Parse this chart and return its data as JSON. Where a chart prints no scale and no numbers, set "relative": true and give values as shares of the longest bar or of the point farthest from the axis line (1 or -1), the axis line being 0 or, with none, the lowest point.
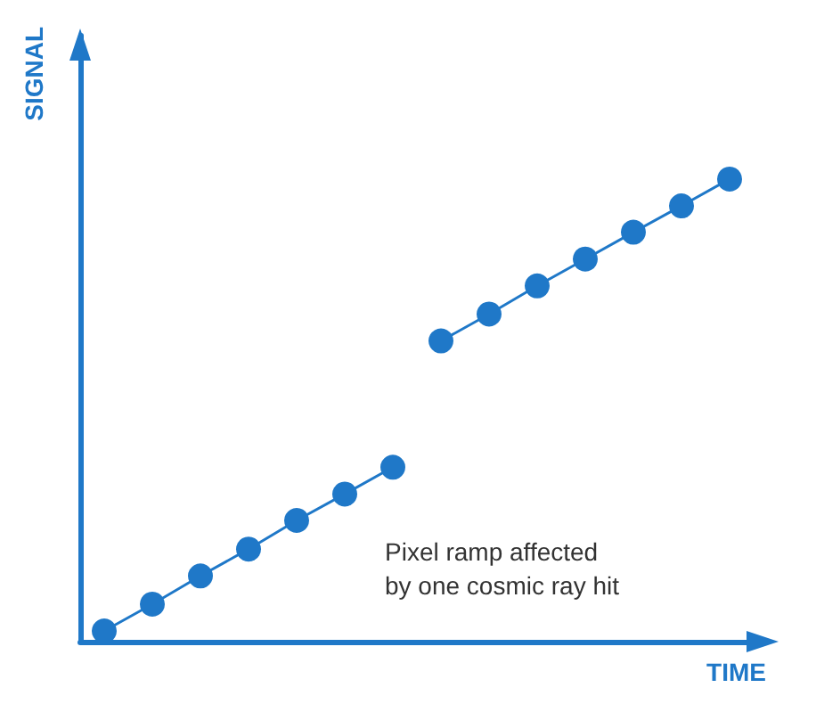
{
  "chart_data": {
    "type": "line",
    "xlabel": "TIME",
    "ylabel": "SIGNAL",
    "relative": true,
    "marker": "circle",
    "line_style": "solid",
    "categories": [
      null,
      null,
      null,
      null,
      null,
      null,
      null,
      null,
      null,
      null,
      null,
      null,
      null,
      null
    ],
    "series": [
      {
        "color": "#1f78c8",
        "values": [
          0.023,
          0.081,
          0.142,
          0.2,
          0.262,
          0.319,
          0.377,
          null,
          null,
          null,
          null,
          null,
          null,
          null
        ]
      },
      {
        "color": "#1f78c8",
        "values": [
          null,
          null,
          null,
          null,
          null,
          null,
          null,
          0.65,
          0.708,
          0.769,
          0.827,
          0.885,
          0.942,
          1
        ]
      }
    ],
    "annotations": [
      "Pixel ramp affected\nby one cosmic ray hit"
    ]
  }
}
